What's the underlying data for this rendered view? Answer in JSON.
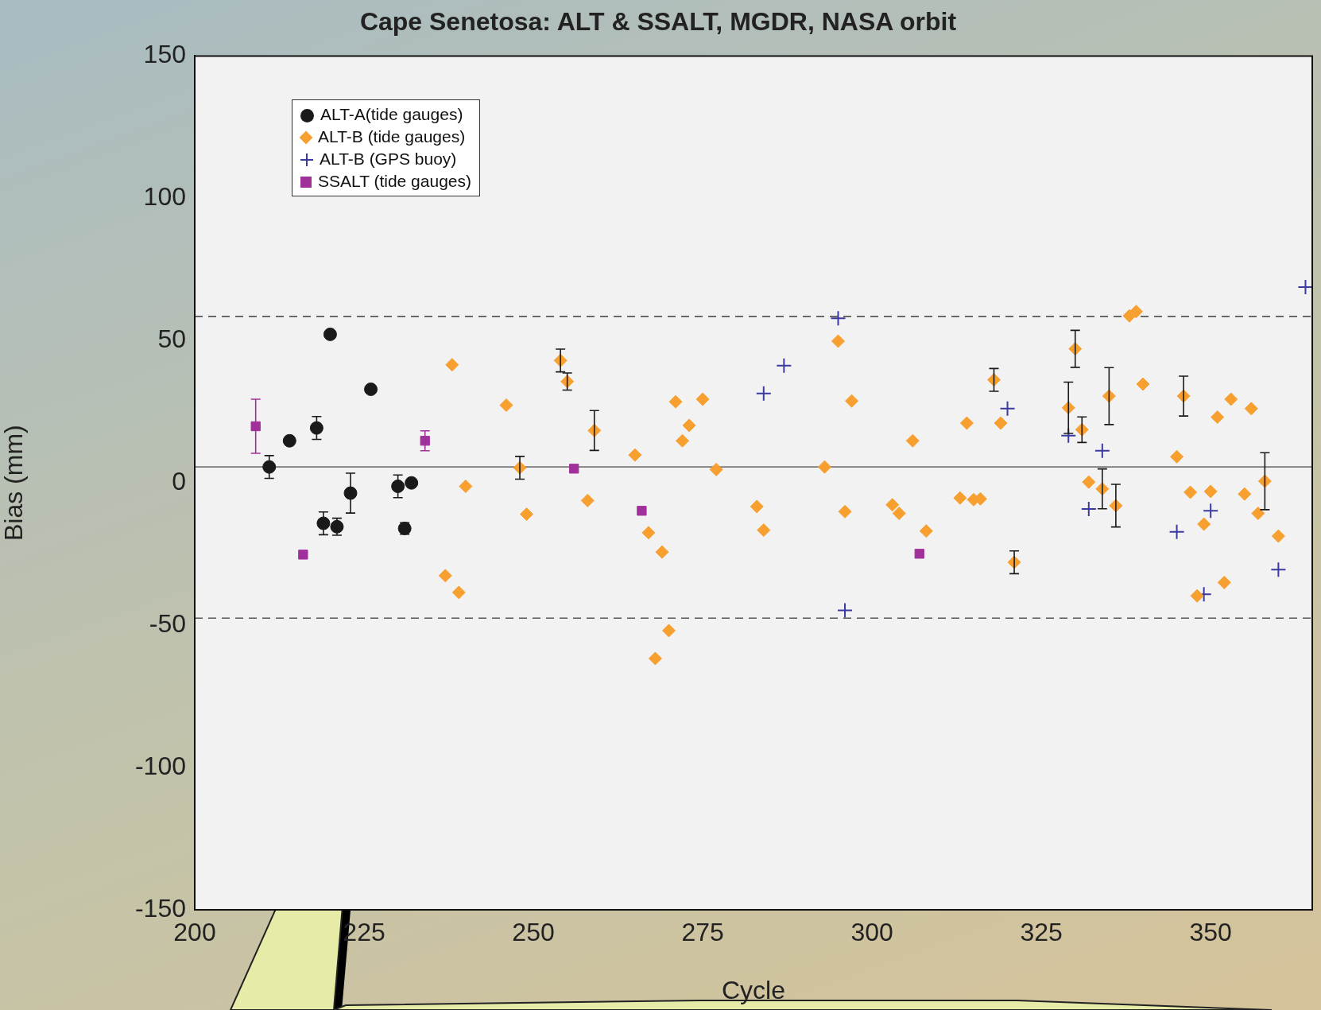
{
  "chart_data": {
    "type": "scatter",
    "title": "Cape Senetosa: ALT & SSALT, MGDR, NASA orbit",
    "xlabel": "Cycle",
    "ylabel": "Bias (mm)",
    "xlim": [
      200,
      365
    ],
    "xticks": [
      200,
      225,
      250,
      275,
      300,
      325,
      350
    ],
    "ylim": [
      -150,
      150
    ],
    "yticks": [
      -150,
      -100,
      -50,
      0,
      50,
      100,
      150
    ],
    "grid": false,
    "legend": "top left",
    "ref_lines": [
      {
        "axis": "y",
        "value": 58.5,
        "line_style": "dashed",
        "color": "#555555"
      },
      {
        "axis": "y",
        "value": -47.5,
        "line_style": "dashed",
        "color": "#555555"
      },
      {
        "axis": "y",
        "value": 5.6,
        "line_style": "solid",
        "color": "#777777"
      }
    ],
    "series": [
      {
        "name": "ALT-A(tide gauges)",
        "color": "#1a1a1a",
        "marker": "circle",
        "x": [
          211,
          214,
          218,
          219,
          220,
          221,
          223,
          226,
          230,
          231,
          232
        ],
        "values": [
          5.6,
          14.8,
          19.3,
          -14.2,
          52.2,
          -15.4,
          -3.6,
          32.9,
          -1.2,
          -16,
          0
        ],
        "errors": [
          4,
          null,
          4,
          4,
          null,
          3,
          7,
          null,
          4,
          2,
          null
        ]
      },
      {
        "name": "ALT-B (tide gauges)",
        "color": "#f7a030",
        "marker": "diamond",
        "x": [
          237,
          238,
          239,
          240,
          246,
          248,
          249,
          254,
          255,
          258,
          259,
          265,
          267,
          268,
          269,
          270,
          271,
          272,
          273,
          275,
          277,
          283,
          284,
          293,
          295,
          296,
          297,
          303,
          304,
          306,
          308,
          313,
          314,
          315,
          316,
          318,
          319,
          321,
          329,
          330,
          331,
          332,
          334,
          335,
          336,
          338,
          339,
          340,
          345,
          346,
          347,
          348,
          349,
          350,
          351,
          352,
          353,
          355,
          356,
          357,
          358,
          360
        ],
        "values": [
          -32.6,
          41.5,
          -38.5,
          -1.2,
          27.3,
          5.3,
          -11,
          43,
          35.6,
          -6.2,
          18.4,
          9.8,
          -17.5,
          -61.7,
          -24.3,
          -51.9,
          28.5,
          14.8,
          20.2,
          29.4,
          4.7,
          -8.3,
          -16.6,
          5.6,
          49.8,
          -10.1,
          28.8,
          -7.7,
          -10.7,
          14.8,
          -16.9,
          -5.3,
          21,
          -5.9,
          -5.6,
          36.2,
          21,
          -27.9,
          26.4,
          47.1,
          18.7,
          0.3,
          -2.1,
          30.5,
          -8,
          58.7,
          60.2,
          34.7,
          9.2,
          30.5,
          -3.3,
          -39.7,
          -14.5,
          -3,
          23.1,
          -35,
          29.4,
          -3.9,
          26.1,
          -10.7,
          0.6,
          -18.7
        ],
        "errors": [
          null,
          null,
          null,
          null,
          null,
          4,
          null,
          4,
          3,
          null,
          7,
          null,
          null,
          null,
          null,
          null,
          null,
          null,
          null,
          null,
          null,
          null,
          null,
          null,
          null,
          null,
          null,
          null,
          null,
          null,
          null,
          null,
          null,
          null,
          null,
          4,
          null,
          4,
          9,
          6.5,
          4.5,
          null,
          7,
          10,
          7.5,
          null,
          null,
          null,
          null,
          7,
          null,
          null,
          null,
          null,
          null,
          null,
          null,
          null,
          null,
          null,
          10,
          null
        ]
      },
      {
        "name": "ALT-B (GPS buoy)",
        "color": "#3a3aa0",
        "marker": "cross",
        "x": [
          284,
          287,
          295,
          296,
          320,
          329,
          332,
          334,
          345,
          349,
          350,
          360,
          364
        ],
        "values": [
          31.4,
          41.2,
          57.8,
          -44.8,
          26.1,
          16.6,
          -9.2,
          11.3,
          -17.2,
          -39.1,
          -9.8,
          -30.5,
          68.8
        ]
      },
      {
        "name": "SSALT (tide gauges)",
        "color": "#a0309a",
        "marker": "square",
        "x": [
          209,
          216,
          234,
          256,
          266,
          307
        ],
        "values": [
          19.9,
          -25.2,
          14.8,
          5,
          -9.8,
          -24.9
        ],
        "errors": [
          9.5,
          null,
          3.5,
          null,
          null,
          null
        ]
      }
    ]
  }
}
